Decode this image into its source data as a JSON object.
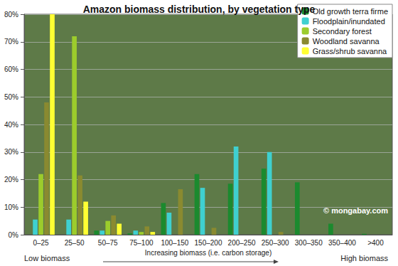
{
  "chart_data": {
    "type": "bar",
    "title": "Amazon biomass distribution, by vegetation type",
    "x_label": "Increasing biomass (i.e. carbon storage)",
    "annotations": [
      "Low biomass",
      "High biomass",
      "© mongabay.com"
    ],
    "categories": [
      "0–25",
      "25–50",
      "50–75",
      "75–100",
      "100–150",
      "150–200",
      "200–250",
      "250–300",
      "300–350",
      "350–400",
      ">400"
    ],
    "series": [
      {
        "name": "Old growth terra firme",
        "color": "#1b8a2e",
        "values": [
          0,
          0,
          1.5,
          0.5,
          11.5,
          22,
          18.5,
          24,
          19,
          4,
          0.3
        ]
      },
      {
        "name": "Floodplain/inundated",
        "color": "#3fd0d0",
        "values": [
          5.5,
          5.5,
          1.5,
          1.5,
          8,
          17,
          32,
          30,
          0,
          0,
          0
        ]
      },
      {
        "name": "Secondary forest",
        "color": "#9ccc2c",
        "values": [
          22,
          72,
          5,
          1,
          0,
          0,
          0,
          0,
          0,
          0,
          0
        ]
      },
      {
        "name": "Woodland savanna",
        "color": "#8a8a30",
        "values": [
          48,
          21.5,
          7,
          3,
          16.5,
          2.5,
          0,
          1,
          0,
          0,
          0
        ]
      },
      {
        "name": "Grass/shrub savanna",
        "color": "#ffff33",
        "values": [
          80,
          12,
          4,
          1,
          0,
          0,
          0,
          0,
          0,
          0,
          0
        ]
      }
    ],
    "ylim": [
      0,
      80
    ],
    "yticks": [
      {
        "value": 0,
        "label": "0%"
      },
      {
        "value": 10,
        "label": "10%"
      },
      {
        "value": 20,
        "label": "20%"
      },
      {
        "value": 30,
        "label": "30%"
      },
      {
        "value": 40,
        "label": "40%"
      },
      {
        "value": 50,
        "label": "50%"
      },
      {
        "value": 60,
        "label": "60%"
      },
      {
        "value": 70,
        "label": "70%"
      },
      {
        "value": 80,
        "label": "80%"
      }
    ],
    "grid": true,
    "legend": "top-right"
  }
}
